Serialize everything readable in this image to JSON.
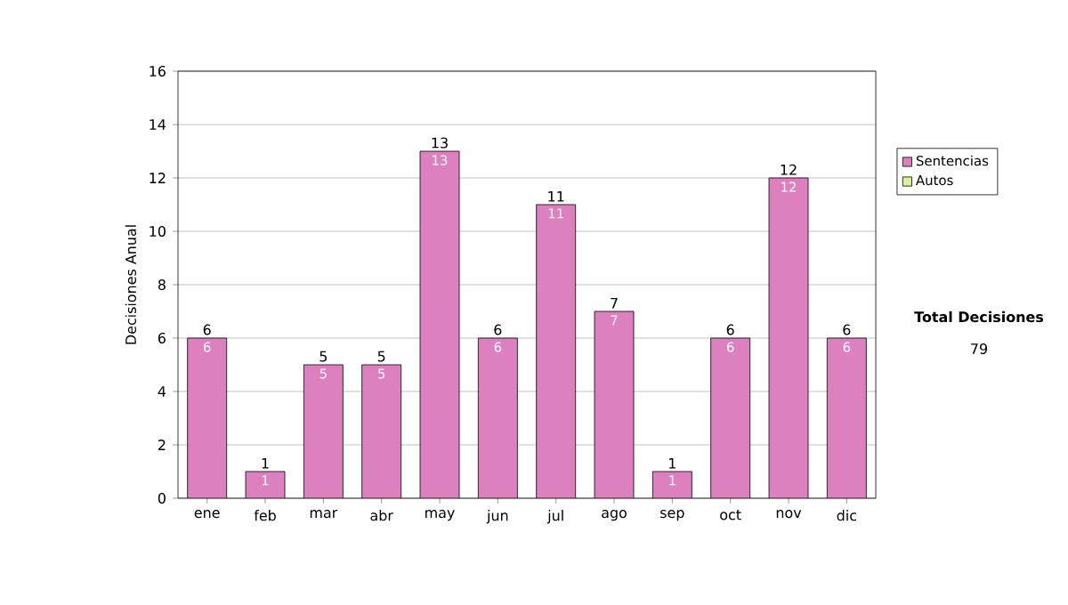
{
  "chart_data": {
    "type": "bar",
    "stacked": true,
    "ylabel": "Decisiones Anual",
    "categories": [
      "ene",
      "feb",
      "mar",
      "abr",
      "may",
      "jun",
      "jul",
      "ago",
      "sep",
      "oct",
      "nov",
      "dic"
    ],
    "series": [
      {
        "name": "Sentencias",
        "color": "#dd80c0",
        "values": [
          6,
          1,
          5,
          5,
          13,
          6,
          11,
          7,
          1,
          6,
          12,
          6
        ],
        "value_labels": [
          "6",
          "1",
          "5",
          "5",
          "13",
          "6",
          "11",
          "7",
          "1",
          "6",
          "12",
          "6"
        ]
      },
      {
        "name": "Autos",
        "color": "#d8f0a0",
        "values": [
          0,
          0,
          0,
          0,
          0,
          0,
          0,
          0,
          0,
          0,
          0,
          0
        ]
      }
    ],
    "totals": [
      "6",
      "1",
      "5",
      "5",
      "13",
      "6",
      "11",
      "7",
      "1",
      "6",
      "12",
      "6"
    ],
    "ylim": [
      0,
      16
    ],
    "yticks": [
      0,
      2,
      4,
      6,
      8,
      10,
      12,
      14,
      16
    ],
    "grid": "y",
    "legend": "right",
    "annotations": [
      "**Total Decisiones**",
      "79"
    ]
  }
}
